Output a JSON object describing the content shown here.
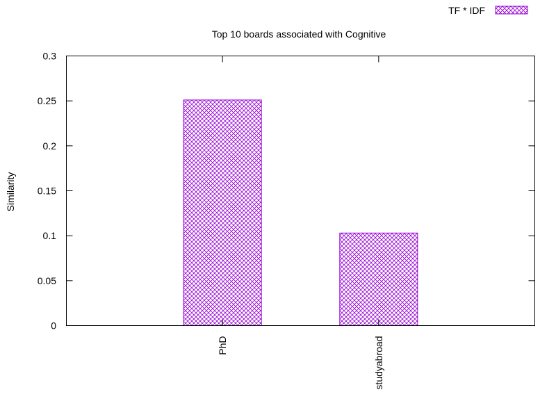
{
  "chart_data": {
    "type": "bar",
    "title": "Top 10 boards associated with Cognitive",
    "xlabel": "",
    "ylabel": "Similarity",
    "ylim": [
      0,
      0.3
    ],
    "y_ticks": [
      "0",
      "0.05",
      "0.1",
      "0.15",
      "0.2",
      "0.25",
      "0.3"
    ],
    "categories": [
      "PhD",
      "studyabroad"
    ],
    "series": [
      {
        "name": "TF * IDF",
        "values": [
          0.251,
          0.103
        ]
      }
    ],
    "legend_position": "top-right",
    "grid": false,
    "colors": {
      "bar": "#9400d3",
      "axis": "#000000"
    }
  }
}
